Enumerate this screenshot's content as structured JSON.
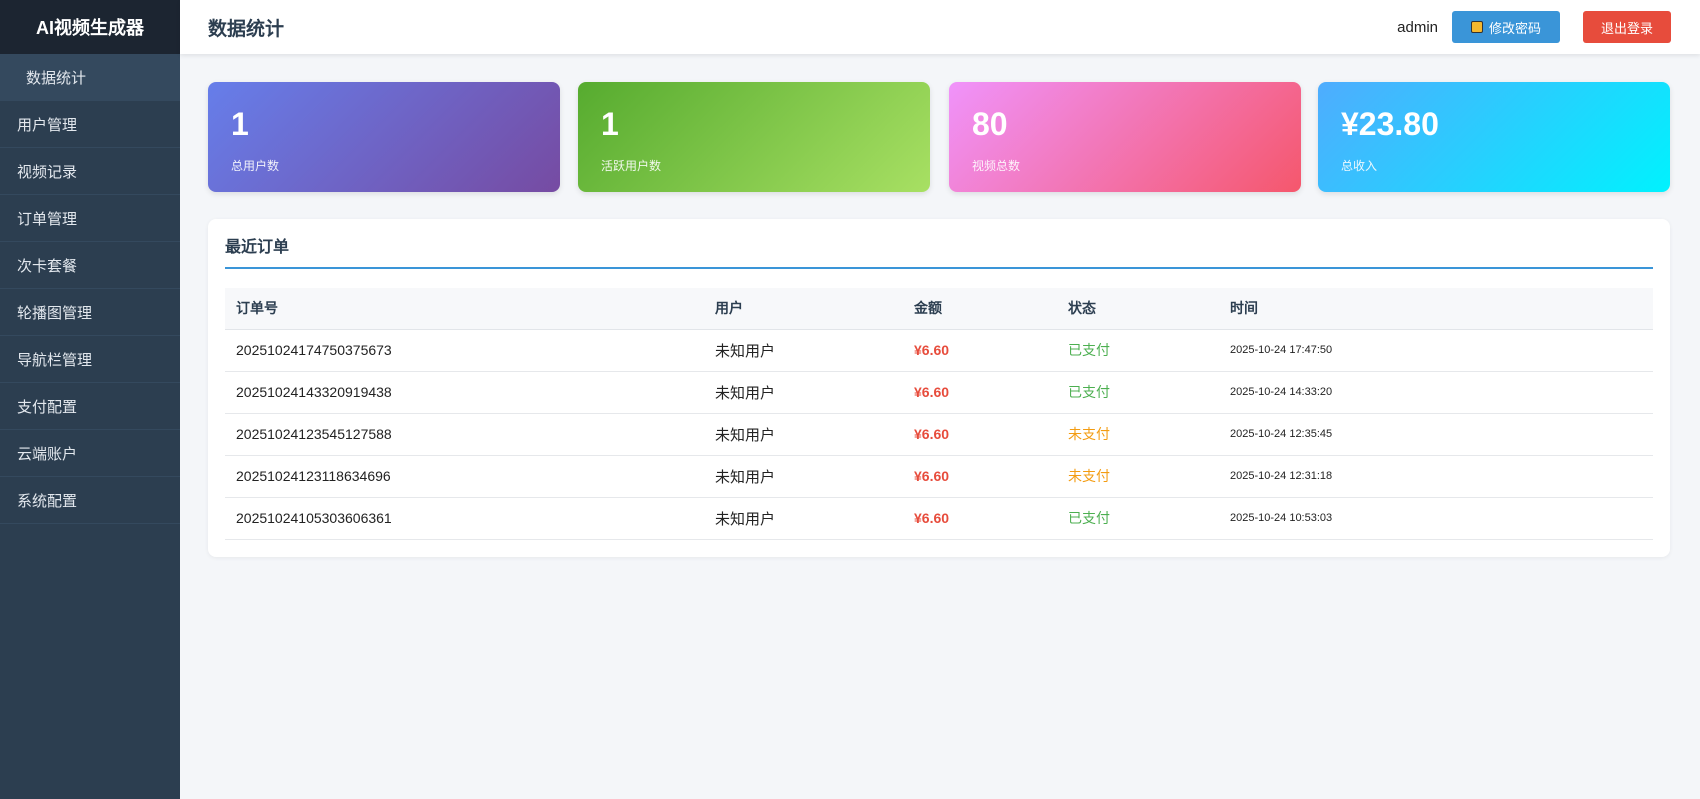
{
  "app_title": "AI视频生成器",
  "sidebar": {
    "items": [
      {
        "label": "数据统计",
        "active": true
      },
      {
        "label": "用户管理"
      },
      {
        "label": "视频记录"
      },
      {
        "label": "订单管理"
      },
      {
        "label": "次卡套餐"
      },
      {
        "label": "轮播图管理"
      },
      {
        "label": "导航栏管理"
      },
      {
        "label": "支付配置"
      },
      {
        "label": "云端账户"
      },
      {
        "label": "系统配置"
      }
    ]
  },
  "header": {
    "title": "数据统计",
    "user": "admin",
    "change_password": "修改密码",
    "logout": "退出登录",
    "lock_icon": "lock-icon"
  },
  "stats": [
    {
      "value": "1",
      "label": "总用户数",
      "colors": [
        "#667eea",
        "#764ba2"
      ]
    },
    {
      "value": "1",
      "label": "活跃用户数",
      "colors": [
        "#56ab2f",
        "#a8e063"
      ]
    },
    {
      "value": "80",
      "label": "视频总数",
      "colors": [
        "#f093fb",
        "#f5576c"
      ]
    },
    {
      "value": "¥23.80",
      "label": "总收入",
      "colors": [
        "#4facfe",
        "#00f2fe"
      ]
    }
  ],
  "orders": {
    "title": "最近订单",
    "columns": [
      "订单号",
      "用户",
      "金额",
      "状态",
      "时间"
    ],
    "rows": [
      [
        "20251024174750375673",
        "未知用户",
        "¥6.60",
        "已支付",
        "2025-10-24 17:47:50"
      ],
      [
        "20251024143320919438",
        "未知用户",
        "¥6.60",
        "已支付",
        "2025-10-24 14:33:20"
      ],
      [
        "20251024123545127588",
        "未知用户",
        "¥6.60",
        "未支付",
        "2025-10-24 12:35:45"
      ],
      [
        "20251024123118634696",
        "未知用户",
        "¥6.60",
        "未支付",
        "2025-10-24 12:31:18"
      ],
      [
        "20251024105303606361",
        "未知用户",
        "¥6.60",
        "已支付",
        "2025-10-24 10:53:03"
      ]
    ]
  }
}
